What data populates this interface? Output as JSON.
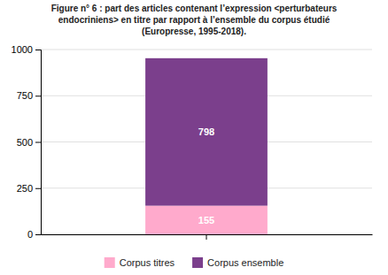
{
  "chart_data": {
    "type": "bar",
    "title": "Figure n° 6 : part des articles contenant l’expression <perturbateurs\nendocriniens> en titre par rapport à l’ensemble du corpus étudié\n(Europresse, 1995-2018).",
    "categories": [
      null
    ],
    "series": [
      {
        "name": "Corpus titres",
        "color": "#ffaacc",
        "values": [
          155
        ]
      },
      {
        "name": "Corpus ensemble",
        "color": "#7b3f8c",
        "values": [
          798
        ]
      }
    ],
    "stacked": true,
    "data_labels": true,
    "ylim": [
      0,
      1000
    ],
    "yticks": [
      0,
      250,
      500,
      750,
      1000
    ],
    "grid": true,
    "legend": "bottom",
    "tick_labels": "y"
  }
}
